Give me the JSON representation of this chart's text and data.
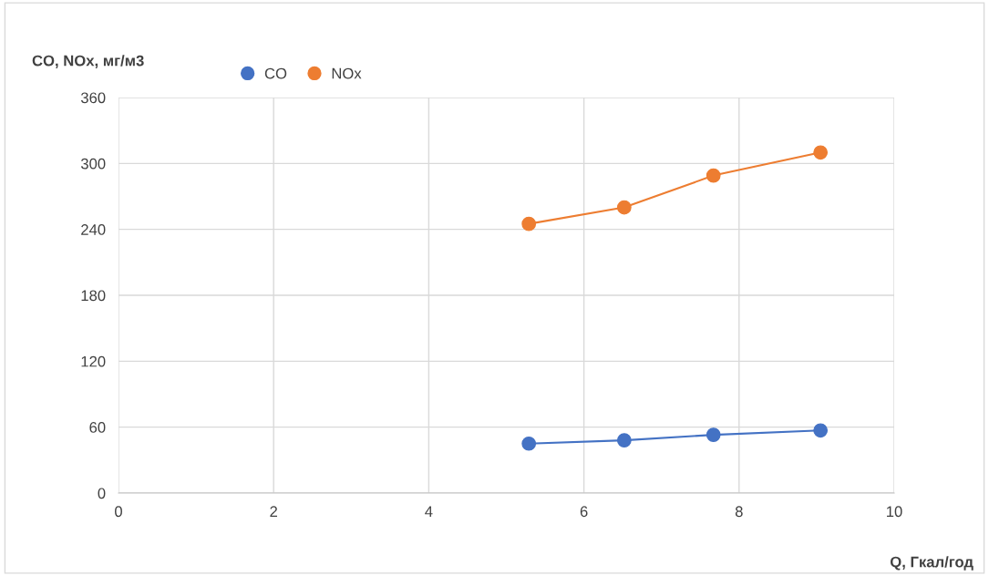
{
  "chart_data": {
    "type": "line",
    "ylabel": "CO, NOx, мг/м3",
    "xlabel": "Q, Гкал/год",
    "series": [
      {
        "name": "CO",
        "color": "#4472c4",
        "x": [
          5.29,
          6.52,
          7.67,
          9.05
        ],
        "values": [
          45,
          48,
          53,
          57
        ]
      },
      {
        "name": "NOx",
        "color": "#ed7d31",
        "x": [
          5.29,
          6.52,
          7.67,
          9.05
        ],
        "values": [
          245,
          260,
          289,
          310
        ]
      }
    ],
    "xlim": [
      0,
      10
    ],
    "xticks": [
      0,
      2,
      4,
      6,
      8,
      10
    ],
    "ylim": [
      0,
      360
    ],
    "yticks": [
      0,
      60,
      120,
      180,
      240,
      300,
      360
    ],
    "grid": true,
    "legend": "top left",
    "marker": "circle",
    "line_style": "solid"
  }
}
